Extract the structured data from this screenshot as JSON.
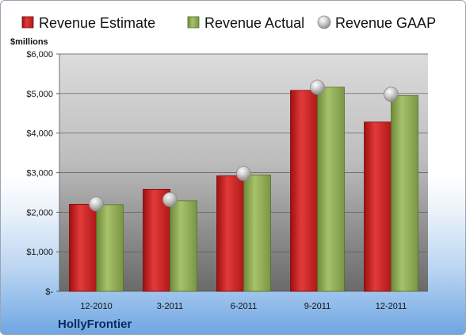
{
  "chart_data": {
    "type": "bar",
    "company": "HollyFrontier",
    "unit_label": "$millions",
    "categories": [
      "12-2010",
      "3-2011",
      "6-2011",
      "9-2011",
      "12-2011"
    ],
    "series": [
      {
        "name": "Revenue Estimate",
        "kind": "bar",
        "color": "#d42a2a",
        "values": [
          2200,
          2580,
          2920,
          5080,
          4280
        ]
      },
      {
        "name": "Revenue Actual",
        "kind": "bar",
        "color": "#8aaa4e",
        "values": [
          2190,
          2290,
          2940,
          5160,
          4950
        ]
      },
      {
        "name": "Revenue GAAP",
        "kind": "marker",
        "color": "#c9c9c9",
        "values": [
          2210,
          2320,
          2980,
          5160,
          4980
        ]
      }
    ],
    "y_ticks": [
      {
        "value": 0,
        "label": "$-"
      },
      {
        "value": 1000,
        "label": "$1,000"
      },
      {
        "value": 2000,
        "label": "$2,000"
      },
      {
        "value": 3000,
        "label": "$3,000"
      },
      {
        "value": 4000,
        "label": "$4,000"
      },
      {
        "value": 5000,
        "label": "$5,000"
      },
      {
        "value": 6000,
        "label": "$6,000"
      }
    ],
    "ylim": [
      0,
      6000
    ],
    "grid": true,
    "legend_position": "top"
  }
}
